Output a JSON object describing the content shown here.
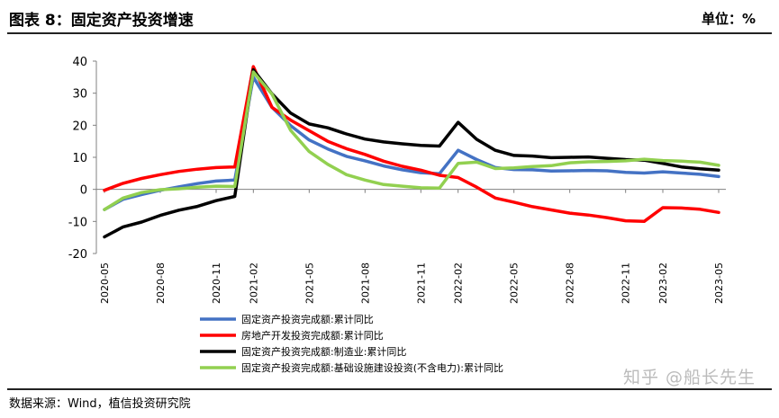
{
  "header": {
    "title": "图表 8：固定资产投资增速",
    "unit": "单位：%"
  },
  "footer": {
    "source": "数据来源：Wind，植信投资研究院",
    "watermark": "知乎 @船长先生"
  },
  "chart_data": {
    "type": "line",
    "ylim": [
      -20,
      40
    ],
    "yticks": [
      -20,
      -10,
      0,
      10,
      20,
      30,
      40
    ],
    "x": [
      "2020-05",
      "2020-06",
      "2020-07",
      "2020-08",
      "2020-09",
      "2020-10",
      "2020-11",
      "2020-12",
      "2021-02",
      "2021-03",
      "2021-04",
      "2021-05",
      "2021-06",
      "2021-07",
      "2021-08",
      "2021-09",
      "2021-10",
      "2021-11",
      "2021-12",
      "2022-02",
      "2022-03",
      "2022-04",
      "2022-05",
      "2022-06",
      "2022-07",
      "2022-08",
      "2022-09",
      "2022-10",
      "2022-11",
      "2022-12",
      "2023-02",
      "2023-03",
      "2023-04",
      "2023-05"
    ],
    "xtick_labels": [
      "2020-05",
      "2020-08",
      "2020-11",
      "2021-02",
      "2021-05",
      "2021-08",
      "2021-11",
      "2022-02",
      "2022-05",
      "2022-08",
      "2022-11",
      "2023-02",
      "2023-05"
    ],
    "grid": false,
    "legend_position": "bottom",
    "series": [
      {
        "name": "固定资产投资完成额:累计同比",
        "color": "#4472c4",
        "values": [
          -6.3,
          -3.1,
          -1.6,
          -0.3,
          0.8,
          1.8,
          2.6,
          2.9,
          35.0,
          25.6,
          19.9,
          15.4,
          12.6,
          10.3,
          8.9,
          7.3,
          6.1,
          5.2,
          4.9,
          12.2,
          9.3,
          6.8,
          6.2,
          6.1,
          5.7,
          5.8,
          5.9,
          5.8,
          5.3,
          5.1,
          5.5,
          5.1,
          4.7,
          4.0
        ]
      },
      {
        "name": "房地产开发投资完成额:累计同比",
        "color": "#ff0000",
        "values": [
          -0.3,
          1.9,
          3.4,
          4.6,
          5.6,
          6.3,
          6.8,
          7.0,
          38.3,
          25.6,
          21.6,
          18.3,
          15.0,
          12.7,
          10.9,
          8.8,
          7.2,
          6.0,
          4.4,
          3.7,
          0.7,
          -2.7,
          -4.0,
          -5.4,
          -6.4,
          -7.4,
          -8.0,
          -8.8,
          -9.8,
          -10.0,
          -5.7,
          -5.8,
          -6.2,
          -7.2
        ]
      },
      {
        "name": "固定资产投资完成额:制造业:累计同比",
        "color": "#000000",
        "values": [
          -14.8,
          -11.7,
          -10.2,
          -8.1,
          -6.5,
          -5.3,
          -3.5,
          -2.2,
          37.3,
          29.8,
          23.8,
          20.4,
          19.2,
          17.3,
          15.7,
          14.8,
          14.2,
          13.7,
          13.5,
          20.9,
          15.6,
          12.2,
          10.6,
          10.4,
          9.9,
          10.0,
          10.1,
          9.7,
          9.3,
          9.1,
          8.1,
          7.0,
          6.4,
          6.0
        ]
      },
      {
        "name": "固定资产投资完成额:基础设施建设投资(不含电力):累计同比",
        "color": "#92d050",
        "values": [
          -6.3,
          -2.7,
          -1.0,
          -0.1,
          0.2,
          0.7,
          1.0,
          0.9,
          36.6,
          29.7,
          18.4,
          11.8,
          7.8,
          4.6,
          2.9,
          1.5,
          1.0,
          0.5,
          0.4,
          8.1,
          8.5,
          6.5,
          6.7,
          7.1,
          7.4,
          8.3,
          8.6,
          8.7,
          8.9,
          9.4,
          9.0,
          8.8,
          8.5,
          7.5
        ]
      }
    ]
  }
}
